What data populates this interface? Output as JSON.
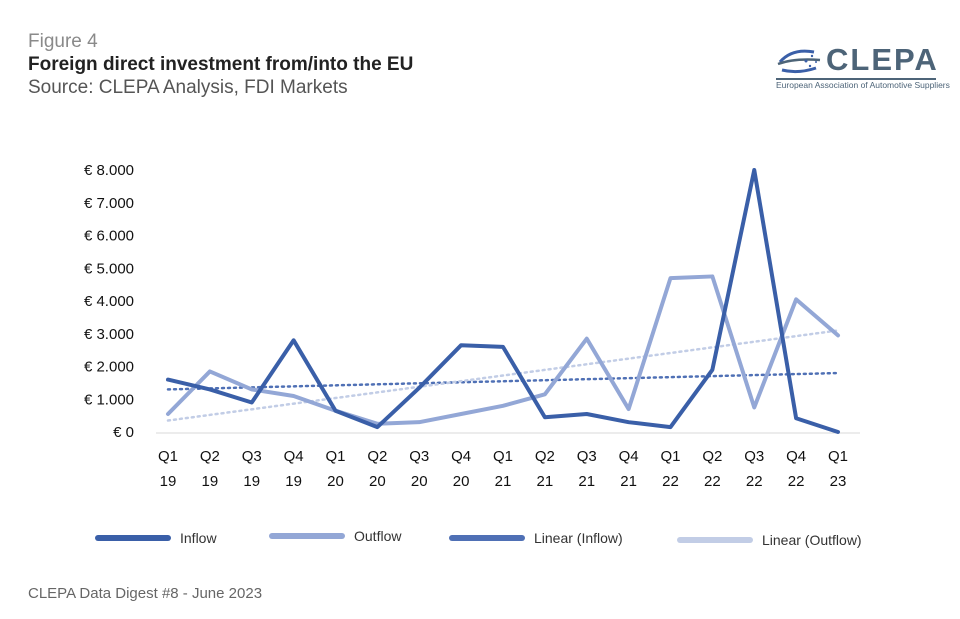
{
  "header": {
    "figure_label": "Figure 4",
    "title": "Foreign direct investment from/into the  EU",
    "source": "Source: CLEPA Analysis, FDI Markets"
  },
  "logo": {
    "wordmark": "CLEPA",
    "subtitle": "European Association of Automotive Suppliers"
  },
  "footer": {
    "text": "CLEPA Data Digest #8 - June 2023"
  },
  "colors": {
    "inflow": "#3a5fa8",
    "outflow": "#93a7d6",
    "linear_inflow": "#4f70b5",
    "linear_outflow": "#c2cde6"
  },
  "chart_data": {
    "type": "line",
    "title": "Foreign direct investment from/into the  EU",
    "xlabel": "",
    "ylabel": "",
    "ylim": [
      0,
      8000
    ],
    "y_ticks": [
      0,
      1000,
      2000,
      3000,
      4000,
      5000,
      6000,
      7000,
      8000
    ],
    "y_tick_labels": [
      "€ 0",
      "€ 1.000",
      "€ 2.000",
      "€ 3.000",
      "€ 4.000",
      "€ 5.000",
      "€ 6.000",
      "€ 7.000",
      "€ 8.000"
    ],
    "categories": [
      [
        "Q1",
        "19"
      ],
      [
        "Q2",
        "19"
      ],
      [
        "Q3",
        "19"
      ],
      [
        "Q4",
        "19"
      ],
      [
        "Q1",
        "20"
      ],
      [
        "Q2",
        "20"
      ],
      [
        "Q3",
        "20"
      ],
      [
        "Q4",
        "20"
      ],
      [
        "Q1",
        "21"
      ],
      [
        "Q2",
        "21"
      ],
      [
        "Q3",
        "21"
      ],
      [
        "Q4",
        "21"
      ],
      [
        "Q1",
        "22"
      ],
      [
        "Q2",
        "22"
      ],
      [
        "Q3",
        "22"
      ],
      [
        "Q4",
        "22"
      ],
      [
        "Q1",
        "23"
      ]
    ],
    "series": [
      {
        "name": "Inflow",
        "values": [
          1600,
          1300,
          900,
          2800,
          650,
          150,
          1350,
          2650,
          2600,
          450,
          550,
          300,
          150,
          1900,
          8000,
          420,
          0
        ]
      },
      {
        "name": "Outflow",
        "values": [
          550,
          1850,
          1300,
          1100,
          650,
          250,
          300,
          550,
          800,
          1150,
          2850,
          700,
          4700,
          4750,
          750,
          4050,
          2950
        ]
      }
    ],
    "trendlines": [
      {
        "name": "Linear (Inflow)",
        "start": 1300,
        "end": 1800
      },
      {
        "name": "Linear (Outflow)",
        "start": 350,
        "end": 3100
      }
    ],
    "legend": [
      "Inflow",
      "Outflow",
      "Linear (Inflow)",
      "Linear (Outflow)"
    ],
    "legend_position": "bottom",
    "grid": false
  }
}
